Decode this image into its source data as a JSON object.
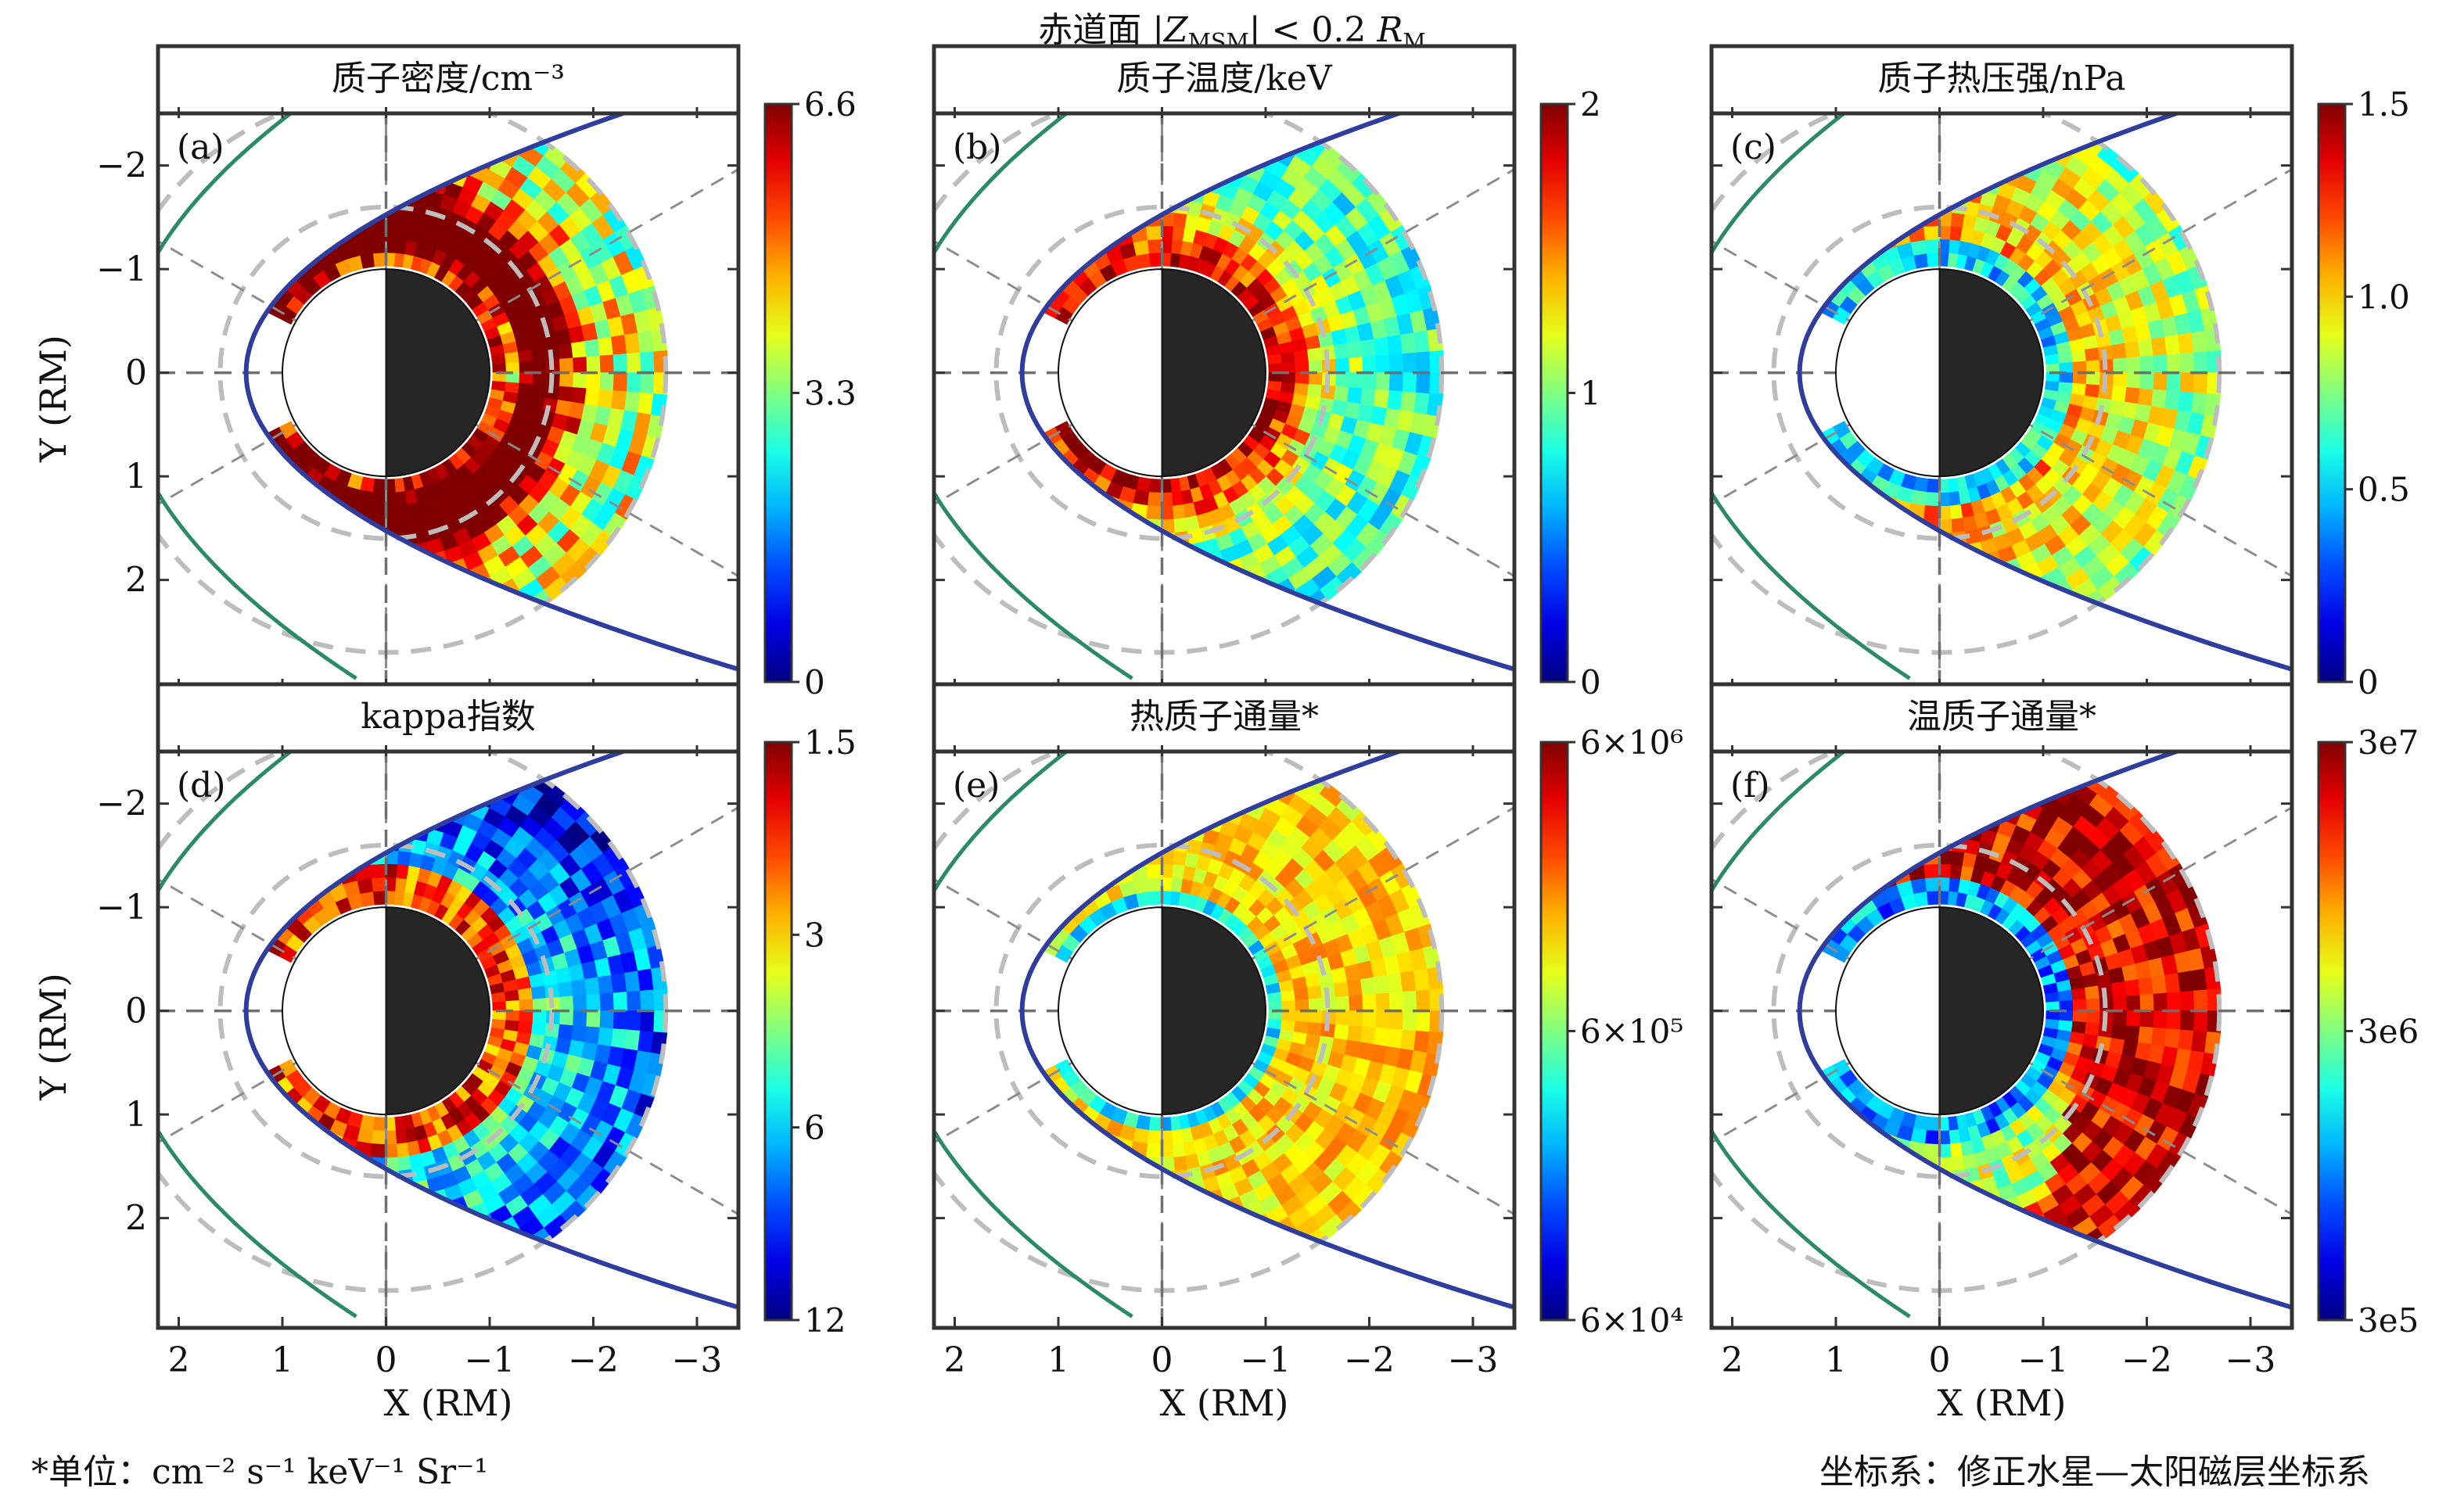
{
  "figure": {
    "title_prefix": "赤道面 |",
    "title_var": "Z",
    "title_sub": "MSM",
    "title_suffix": "| < 0.2 ",
    "title_unit": "R",
    "title_unit_sub": "M",
    "footnote_unit": "*单位：cm⁻² s⁻¹  keV⁻¹ Sr⁻¹",
    "footnote_coords": "坐标系：修正水星—太阳磁层坐标系",
    "colormap": "jet"
  },
  "chart_data": [
    {
      "type": "heatmap",
      "panel_label": "(a)",
      "title": "质子密度/cm⁻³",
      "xlabel": "X (RM)",
      "ylabel": "Y (RM)",
      "xlim": [
        2.2,
        -3.4
      ],
      "ylim": [
        -2.45,
        2.75
      ],
      "xticks": [
        "2",
        "1",
        "0",
        "−1",
        "−2",
        "−3"
      ],
      "yticks": [
        "−2",
        "−1",
        "0",
        "1",
        "2"
      ],
      "colorbar": {
        "scale": "linear",
        "min": 0,
        "max": 6.6,
        "ticks": [
          "0",
          "3.3",
          "6.6"
        ]
      },
      "pattern": "density"
    },
    {
      "type": "heatmap",
      "panel_label": "(b)",
      "title": "质子温度/keV",
      "xlabel": "",
      "ylabel": "",
      "xlim": [
        2.2,
        -3.4
      ],
      "ylim": [
        -2.45,
        2.75
      ],
      "xticks": [
        "2",
        "1",
        "0",
        "−1",
        "−2",
        "−3"
      ],
      "yticks": [],
      "colorbar": {
        "scale": "linear",
        "min": 0,
        "max": 2,
        "ticks": [
          "0",
          "1",
          "2"
        ]
      },
      "pattern": "temperature"
    },
    {
      "type": "heatmap",
      "panel_label": "(c)",
      "title": "质子热压强/nPa",
      "xlabel": "",
      "ylabel": "",
      "xlim": [
        2.2,
        -3.4
      ],
      "ylim": [
        -2.45,
        2.75
      ],
      "xticks": [
        "2",
        "1",
        "0",
        "−1",
        "−2",
        "−3"
      ],
      "yticks": [],
      "colorbar": {
        "scale": "linear",
        "min": 0,
        "max": 1.5,
        "ticks": [
          "0",
          "0.5",
          "1.0",
          "1.5"
        ]
      },
      "pattern": "pressure"
    },
    {
      "type": "heatmap",
      "panel_label": "(d)",
      "title": "kappa指数",
      "xlabel": "X (RM)",
      "ylabel": "Y (RM)",
      "xlim": [
        2.2,
        -3.4
      ],
      "ylim": [
        -2.45,
        2.75
      ],
      "xticks": [
        "2",
        "1",
        "0",
        "−1",
        "−2",
        "−3"
      ],
      "yticks": [
        "−2",
        "−1",
        "0",
        "1",
        "2"
      ],
      "colorbar": {
        "scale": "reversed",
        "min": 12,
        "max": 1.5,
        "ticks": [
          "12",
          "6",
          "3",
          "1.5"
        ]
      },
      "pattern": "kappa"
    },
    {
      "type": "heatmap",
      "panel_label": "(e)",
      "title": "热质子通量*",
      "xlabel": "X (RM)",
      "ylabel": "",
      "xlim": [
        2.2,
        -3.4
      ],
      "ylim": [
        -2.45,
        2.75
      ],
      "xticks": [
        "2",
        "1",
        "0",
        "−1",
        "−2",
        "−3"
      ],
      "yticks": [],
      "colorbar": {
        "scale": "log",
        "min": 60000,
        "max": 6000000,
        "ticks": [
          "6×10⁴",
          "6×10⁵",
          "6×10⁶"
        ]
      },
      "pattern": "hotflux"
    },
    {
      "type": "heatmap",
      "panel_label": "(f)",
      "title": "温质子通量*",
      "xlabel": "X (RM)",
      "ylabel": "",
      "xlim": [
        2.2,
        -3.4
      ],
      "ylim": [
        -2.45,
        2.75
      ],
      "xticks": [
        "2",
        "1",
        "0",
        "−1",
        "−2",
        "−3"
      ],
      "yticks": [],
      "colorbar": {
        "scale": "log",
        "min": 300000,
        "max": 30000000,
        "ticks": [
          "3e5",
          "3e6",
          "3e7"
        ]
      },
      "pattern": "warmflux"
    }
  ]
}
